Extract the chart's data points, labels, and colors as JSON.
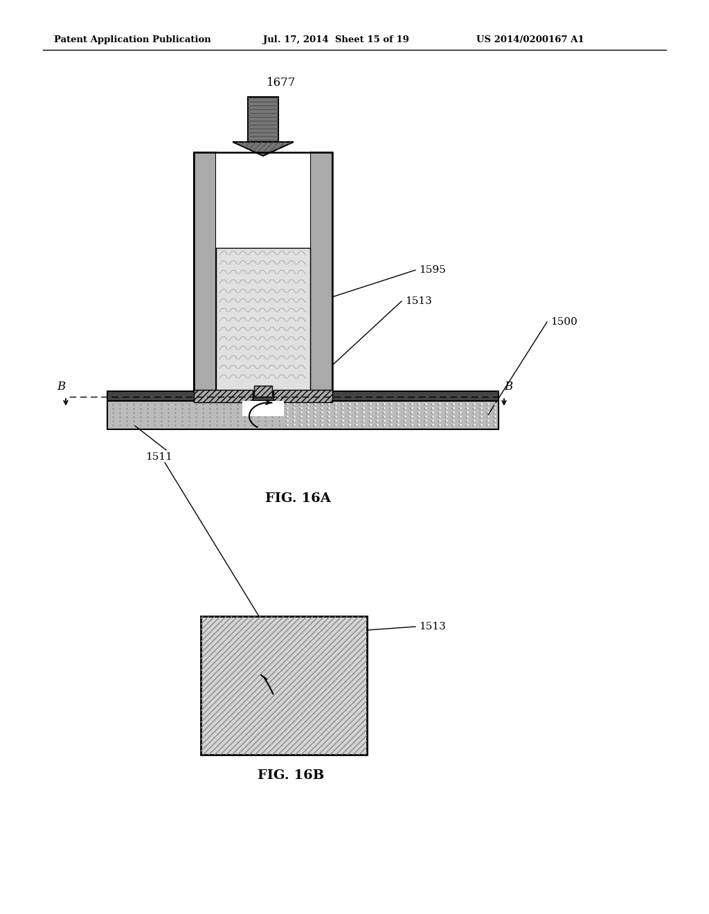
{
  "bg_color": "#ffffff",
  "header_text": "Patent Application Publication",
  "header_date": "Jul. 17, 2014  Sheet 15 of 19",
  "header_patent": "US 2014/0200167 A1",
  "fig_a_label": "FIG. 16A",
  "fig_b_label": "FIG. 16B",
  "colors": {
    "dark_gray": "#444444",
    "mid_gray": "#999999",
    "wall_gray": "#aaaaaa",
    "light_gray": "#cccccc",
    "stipple_gray": "#e0e0e0",
    "substrate_gray": "#bbbbbb",
    "white": "#ffffff",
    "black": "#000000",
    "arrow_gray": "#777777",
    "box_fill": "#d4d4d4"
  }
}
